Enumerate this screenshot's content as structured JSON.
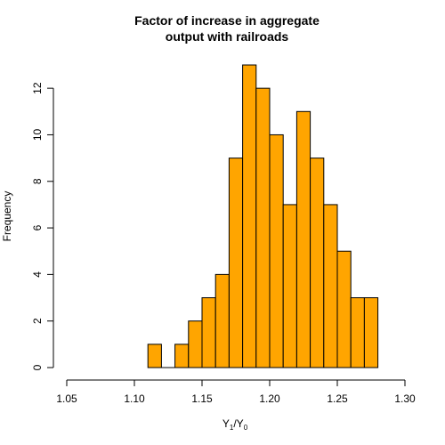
{
  "chart_data": {
    "type": "bar",
    "title_lines": [
      "Factor of increase in aggregate",
      "output with railroads"
    ],
    "xlabel": {
      "base1": "Y",
      "sub1": "1",
      "sep": "/",
      "base2": "Y",
      "sub2": "0"
    },
    "ylabel": "Frequency",
    "xlim": [
      1.05,
      1.3
    ],
    "ylim": [
      0,
      13
    ],
    "bin_width": 0.01,
    "bins": [
      {
        "start": 1.11,
        "end": 1.12,
        "count": 1
      },
      {
        "start": 1.12,
        "end": 1.13,
        "count": 0
      },
      {
        "start": 1.13,
        "end": 1.14,
        "count": 1
      },
      {
        "start": 1.14,
        "end": 1.15,
        "count": 2
      },
      {
        "start": 1.15,
        "end": 1.16,
        "count": 3
      },
      {
        "start": 1.16,
        "end": 1.17,
        "count": 4
      },
      {
        "start": 1.17,
        "end": 1.18,
        "count": 9
      },
      {
        "start": 1.18,
        "end": 1.19,
        "count": 13
      },
      {
        "start": 1.19,
        "end": 1.2,
        "count": 12
      },
      {
        "start": 1.2,
        "end": 1.21,
        "count": 10
      },
      {
        "start": 1.21,
        "end": 1.22,
        "count": 7
      },
      {
        "start": 1.22,
        "end": 1.23,
        "count": 11
      },
      {
        "start": 1.23,
        "end": 1.24,
        "count": 9
      },
      {
        "start": 1.24,
        "end": 1.25,
        "count": 7
      },
      {
        "start": 1.25,
        "end": 1.26,
        "count": 5
      },
      {
        "start": 1.26,
        "end": 1.27,
        "count": 3
      },
      {
        "start": 1.27,
        "end": 1.28,
        "count": 3
      }
    ],
    "x_ticks": [
      "1.05",
      "1.10",
      "1.15",
      "1.20",
      "1.25",
      "1.30"
    ],
    "y_ticks": [
      "0",
      "2",
      "4",
      "6",
      "8",
      "10",
      "12"
    ],
    "bar_fill": "#FFA500",
    "bar_stroke": "#000000",
    "grid": false,
    "legend": "none"
  }
}
